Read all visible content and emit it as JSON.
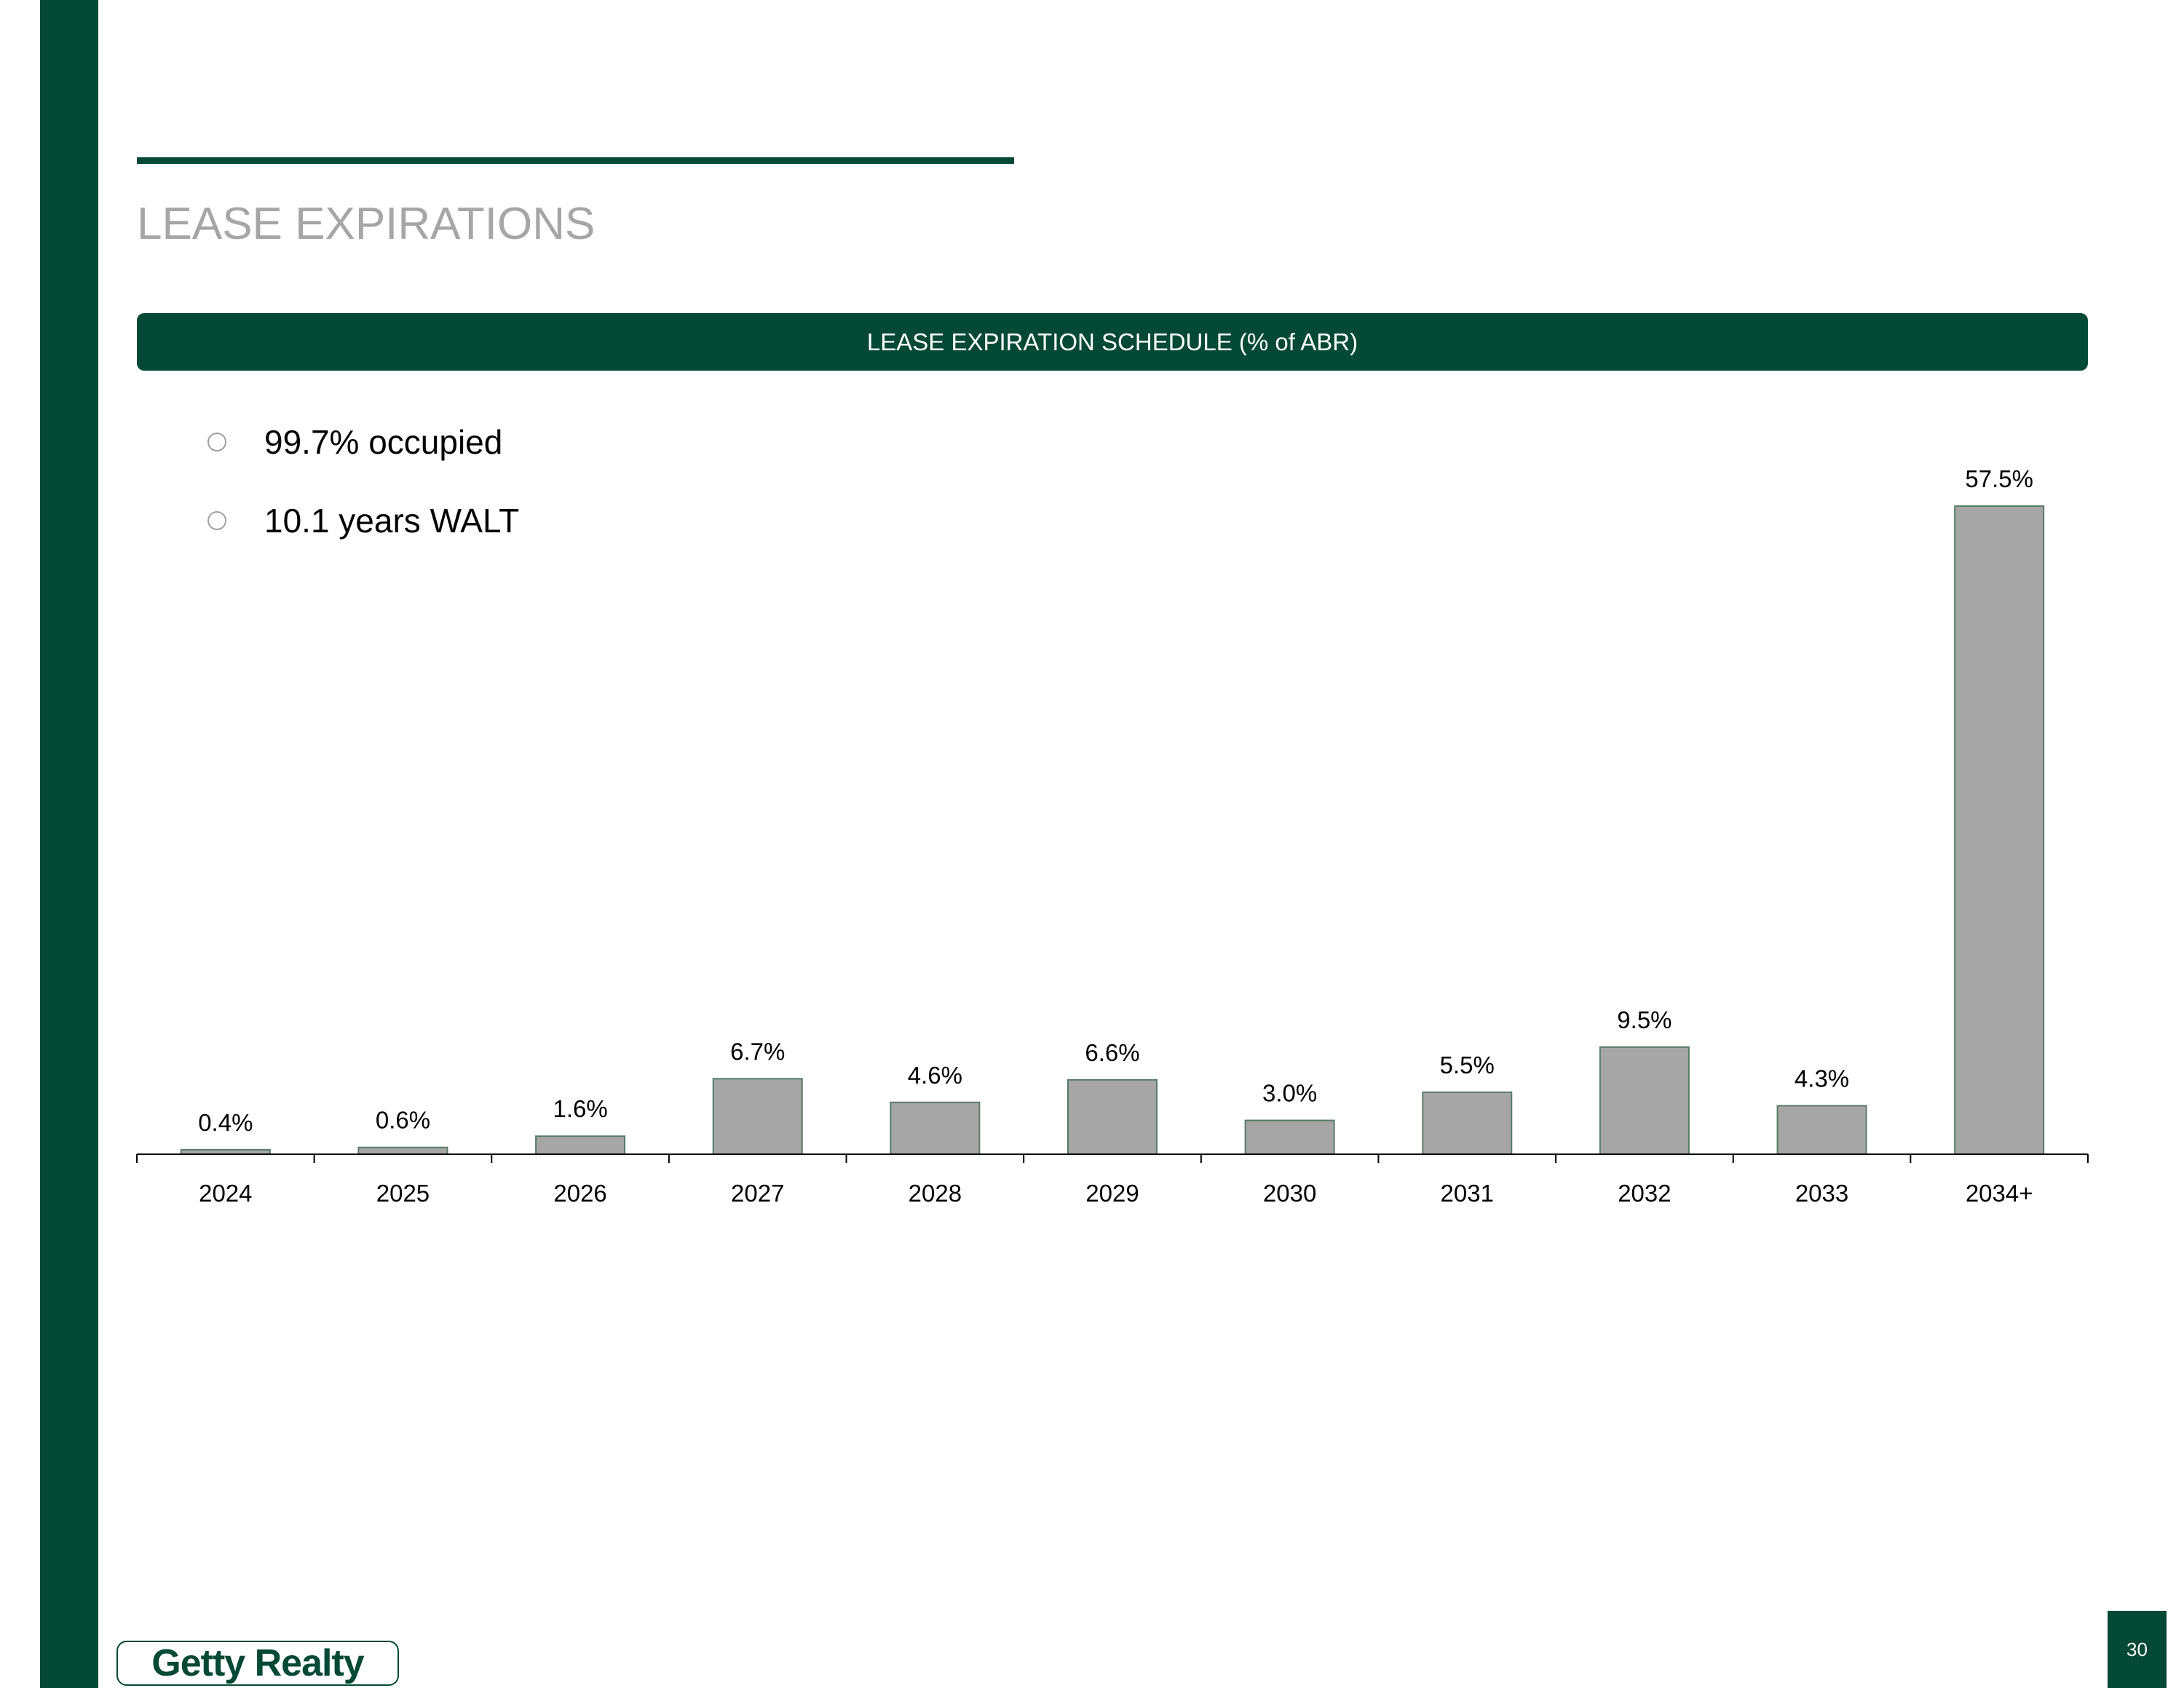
{
  "title": "LEASE EXPIRATIONS",
  "band_title": "LEASE EXPIRATION SCHEDULE (% of ABR)",
  "bullets": [
    "99.7% occupied",
    "10.1 years WALT"
  ],
  "logo_text": "Getty Realty",
  "page_number": "30",
  "colors": {
    "brand": "#034936",
    "bar": "#a6a6a6",
    "title": "#a6a6a6"
  },
  "chart_data": {
    "type": "bar",
    "title": "LEASE EXPIRATION SCHEDULE (% of ABR)",
    "categories": [
      "2024",
      "2025",
      "2026",
      "2027",
      "2028",
      "2029",
      "2030",
      "2031",
      "2032",
      "2033",
      "2034+"
    ],
    "values": [
      0.4,
      0.6,
      1.6,
      6.7,
      4.6,
      6.6,
      3.0,
      5.5,
      9.5,
      4.3,
      57.5
    ],
    "labels": [
      "0.4%",
      "0.6%",
      "1.6%",
      "6.7%",
      "4.6%",
      "6.6%",
      "3.0%",
      "5.5%",
      "9.5%",
      "4.3%",
      "57.5%"
    ],
    "xlabel": "",
    "ylabel": "% of ABR",
    "ylim": [
      0,
      57.5
    ],
    "grid": false
  }
}
